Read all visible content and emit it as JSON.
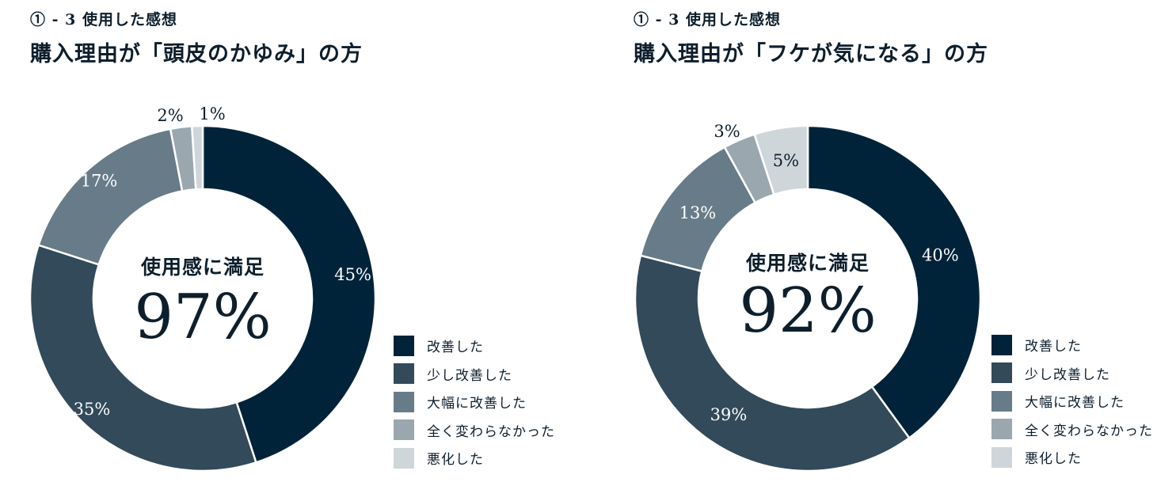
{
  "legend": [
    "改善した",
    "少し改善した",
    "大幅に改善した",
    "全く変わらなかった",
    "悪化した"
  ],
  "colors": [
    "#00233a",
    "#324a5a",
    "#677c88",
    "#9aa7ae",
    "#cfd6da"
  ],
  "chart_data": [
    {
      "type": "pie",
      "subtitle": "① - 3 使用した感想",
      "title": "購入理由が「頭皮のかゆみ」の方",
      "center_label": "使用感に満足",
      "center_value": "97%",
      "categories": [
        "改善した",
        "少し改善した",
        "大幅に改善した",
        "全く変わらなかった",
        "悪化した"
      ],
      "values": [
        45,
        35,
        17,
        2,
        1
      ],
      "labels": [
        "45%",
        "35%",
        "17%",
        "2%",
        "1%"
      ]
    },
    {
      "type": "pie",
      "subtitle": "① - 3 使用した感想",
      "title": "購入理由が「フケが気になる」の方",
      "center_label": "使用感に満足",
      "center_value": "92%",
      "categories": [
        "改善した",
        "少し改善した",
        "大幅に改善した",
        "全く変わらなかった",
        "悪化した"
      ],
      "values": [
        40,
        39,
        13,
        3,
        5
      ],
      "labels": [
        "40%",
        "39%",
        "13%",
        "3%",
        "5%"
      ]
    }
  ]
}
